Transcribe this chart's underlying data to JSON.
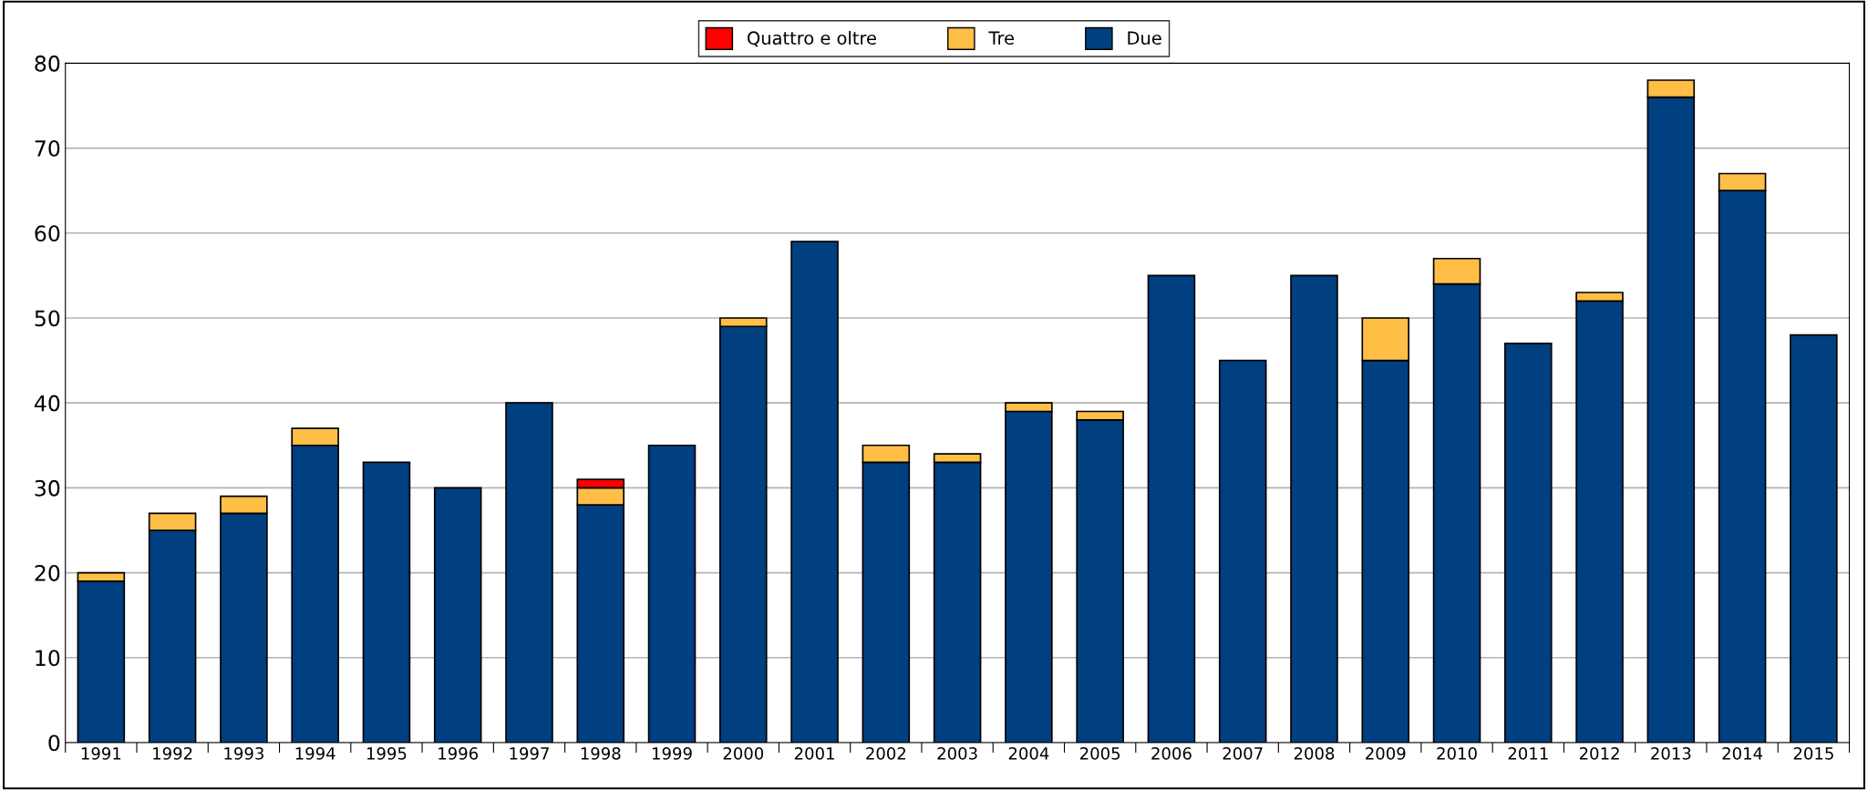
{
  "chart_data": {
    "type": "bar",
    "stacked": true,
    "categories": [
      "1991",
      "1992",
      "1993",
      "1994",
      "1995",
      "1996",
      "1997",
      "1998",
      "1999",
      "2000",
      "2001",
      "2002",
      "2003",
      "2004",
      "2005",
      "2006",
      "2007",
      "2008",
      "2009",
      "2010",
      "2011",
      "2012",
      "2013",
      "2014",
      "2015"
    ],
    "series": [
      {
        "name": "Due",
        "color": "#003f80",
        "values": [
          19,
          25,
          27,
          35,
          33,
          30,
          40,
          28,
          35,
          49,
          59,
          33,
          33,
          39,
          38,
          55,
          45,
          55,
          45,
          54,
          47,
          52,
          76,
          65,
          48
        ]
      },
      {
        "name": "Tre",
        "color": "#ffbf47",
        "values": [
          1,
          2,
          2,
          2,
          null,
          null,
          null,
          2,
          null,
          1,
          null,
          2,
          1,
          1,
          1,
          null,
          null,
          null,
          5,
          3,
          null,
          1,
          2,
          2,
          null
        ]
      },
      {
        "name": "Quattro e oltre",
        "color": "#ff0000",
        "values": [
          null,
          null,
          null,
          null,
          null,
          null,
          null,
          1,
          null,
          null,
          null,
          null,
          null,
          null,
          null,
          null,
          null,
          null,
          null,
          null,
          null,
          null,
          null,
          null,
          null
        ]
      }
    ],
    "ylim": [
      0,
      80
    ],
    "yticks": [
      0,
      10,
      20,
      30,
      40,
      50,
      60,
      70,
      80
    ],
    "grid": "y",
    "legend": "top"
  }
}
